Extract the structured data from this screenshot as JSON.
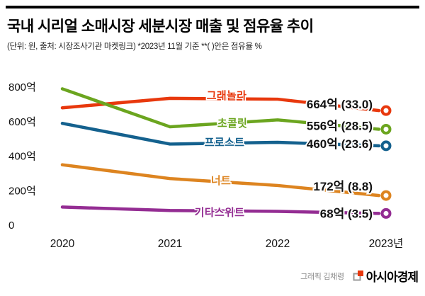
{
  "header": {
    "title": "국내 시리얼 소매시장 세분시장 매출 및 점유율 추이",
    "subtitle": "(단위: 원, 출처: 시장조사기관 마켓링크)  *2023년 11월 기준  **(   )안은 점유율 %"
  },
  "chart_data": {
    "type": "line",
    "title": "국내 시리얼 소매시장 세분시장 매출 및 점유율 추이",
    "unit": "억 원",
    "x": [
      "2020",
      "2021",
      "2022",
      "2023년"
    ],
    "ylim": [
      0,
      800
    ],
    "y_ticks": [
      {
        "value": 800,
        "label": "800억"
      },
      {
        "value": 600,
        "label": "600억"
      },
      {
        "value": 400,
        "label": "400억"
      },
      {
        "value": 200,
        "label": "200억"
      },
      {
        "value": 0,
        "label": "0"
      }
    ],
    "grid": false,
    "legend": "inline-labels",
    "series": [
      {
        "name": "그래놀라",
        "color": "#e8380d",
        "values": [
          680,
          735,
          730,
          664
        ],
        "end_label": "664억 (33.0)",
        "share_pct": 33.0
      },
      {
        "name": "초콜릿",
        "color": "#6ba51f",
        "values": [
          790,
          570,
          610,
          556
        ],
        "end_label": "556억 (28.5)",
        "share_pct": 28.5
      },
      {
        "name": "프로스트",
        "color": "#14618e",
        "values": [
          590,
          470,
          480,
          460
        ],
        "end_label": "460억 (23.6)",
        "share_pct": 23.6
      },
      {
        "name": "너트",
        "color": "#dd8420",
        "values": [
          350,
          270,
          230,
          172
        ],
        "end_label": "172억 (8.8)",
        "share_pct": 8.8
      },
      {
        "name": "기타스위트",
        "color": "#942d93",
        "values": [
          105,
          85,
          80,
          68
        ],
        "end_label": "68억 (3.5)",
        "share_pct": 3.5
      }
    ]
  },
  "footer": {
    "credit": "그래픽 김채령",
    "brand": "아시아경제",
    "brand_color": "#e8380d"
  }
}
